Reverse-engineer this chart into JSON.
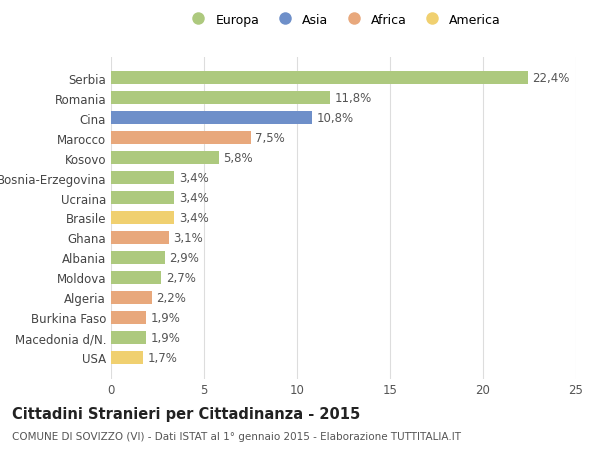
{
  "categories": [
    "Serbia",
    "Romania",
    "Cina",
    "Marocco",
    "Kosovo",
    "Bosnia-Erzegovina",
    "Ucraina",
    "Brasile",
    "Ghana",
    "Albania",
    "Moldova",
    "Algeria",
    "Burkina Faso",
    "Macedonia d/N.",
    "USA"
  ],
  "values": [
    22.4,
    11.8,
    10.8,
    7.5,
    5.8,
    3.4,
    3.4,
    3.4,
    3.1,
    2.9,
    2.7,
    2.2,
    1.9,
    1.9,
    1.7
  ],
  "labels": [
    "22,4%",
    "11,8%",
    "10,8%",
    "7,5%",
    "5,8%",
    "3,4%",
    "3,4%",
    "3,4%",
    "3,1%",
    "2,9%",
    "2,7%",
    "2,2%",
    "1,9%",
    "1,9%",
    "1,7%"
  ],
  "colors": [
    "#adc97e",
    "#adc97e",
    "#6e8fc9",
    "#e8a87c",
    "#adc97e",
    "#adc97e",
    "#adc97e",
    "#f0d070",
    "#e8a87c",
    "#adc97e",
    "#adc97e",
    "#e8a87c",
    "#e8a87c",
    "#adc97e",
    "#f0d070"
  ],
  "legend": [
    {
      "label": "Europa",
      "color": "#adc97e"
    },
    {
      "label": "Asia",
      "color": "#6e8fc9"
    },
    {
      "label": "Africa",
      "color": "#e8a87c"
    },
    {
      "label": "America",
      "color": "#f0d070"
    }
  ],
  "xlim": [
    0,
    25
  ],
  "xticks": [
    0,
    5,
    10,
    15,
    20,
    25
  ],
  "title": "Cittadini Stranieri per Cittadinanza - 2015",
  "subtitle": "COMUNE DI SOVIZZO (VI) - Dati ISTAT al 1° gennaio 2015 - Elaborazione TUTTITALIA.IT",
  "background_color": "#ffffff",
  "grid_color": "#dddddd",
  "bar_height": 0.65,
  "label_fontsize": 8.5,
  "tick_fontsize": 8.5,
  "title_fontsize": 10.5,
  "subtitle_fontsize": 7.5
}
